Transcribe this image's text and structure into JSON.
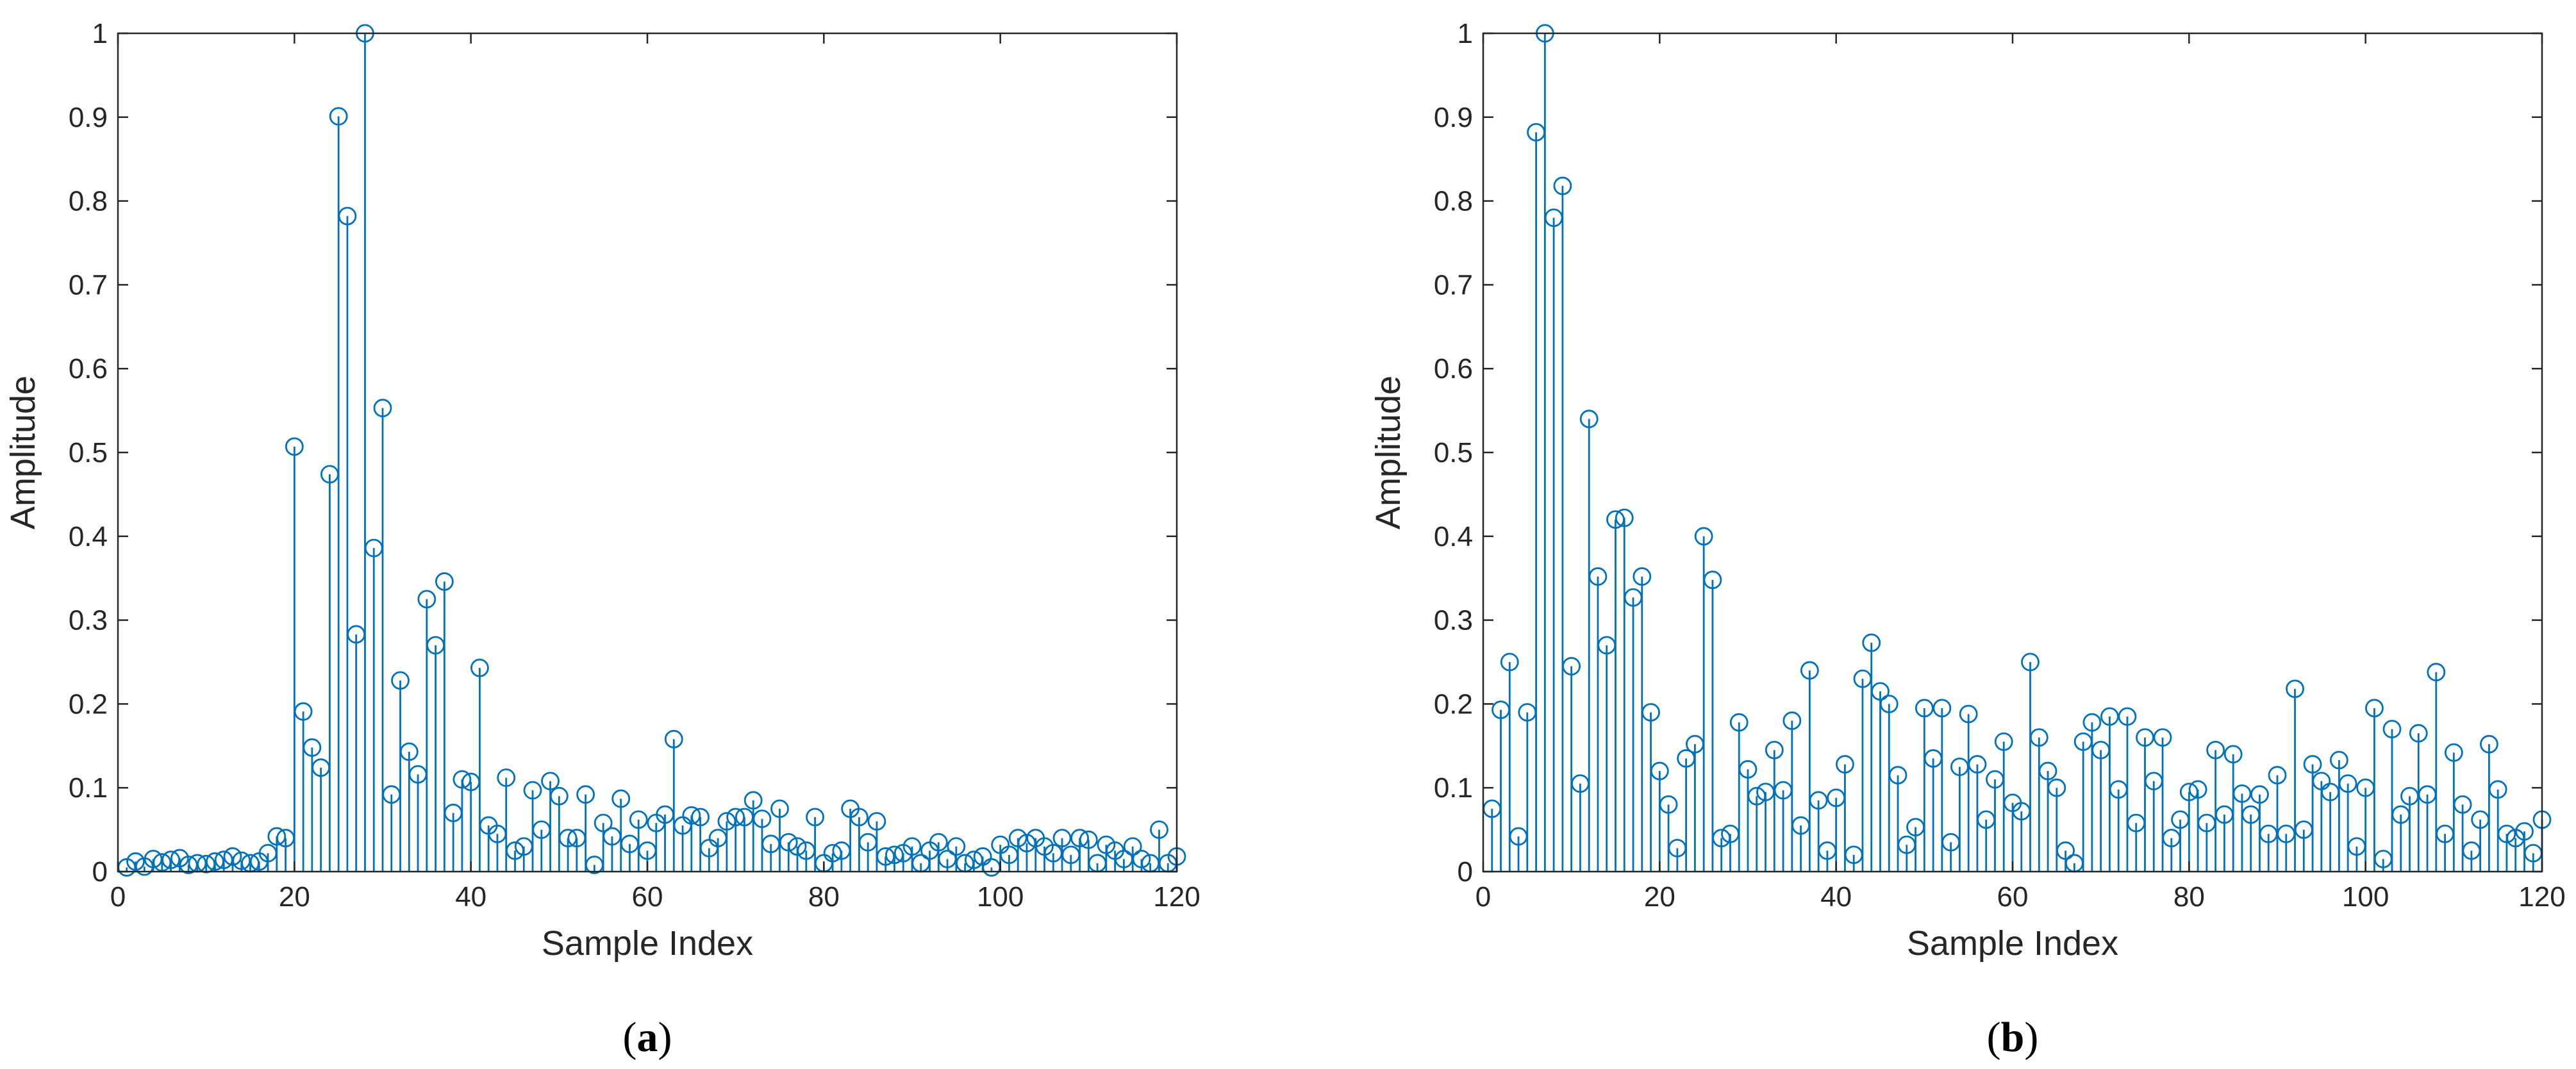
{
  "colors": {
    "series": "#0072BD",
    "axis": "#262626",
    "background": "#ffffff"
  },
  "chart_data": [
    {
      "type": "stem",
      "panel_label": "a",
      "xlabel": "Sample Index",
      "ylabel": "Amplitude",
      "xlim": [
        0,
        120
      ],
      "ylim": [
        0,
        1
      ],
      "xticks": [
        0,
        20,
        40,
        60,
        80,
        100,
        120
      ],
      "yticks": [
        0,
        0.1,
        0.2,
        0.3,
        0.4,
        0.5,
        0.6,
        0.7,
        0.8,
        0.9,
        1
      ],
      "ytick_labels": [
        "0",
        "0.1",
        "0.2",
        "0.3",
        "0.4",
        "0.5",
        "0.6",
        "0.7",
        "0.8",
        "0.9",
        "1"
      ],
      "grid": false,
      "x": [
        1,
        2,
        3,
        4,
        5,
        6,
        7,
        8,
        9,
        10,
        11,
        12,
        13,
        14,
        15,
        16,
        17,
        18,
        19,
        20,
        21,
        22,
        23,
        24,
        25,
        26,
        27,
        28,
        29,
        30,
        31,
        32,
        33,
        34,
        35,
        36,
        37,
        38,
        39,
        40,
        41,
        42,
        43,
        44,
        45,
        46,
        47,
        48,
        49,
        50,
        51,
        52,
        53,
        54,
        55,
        56,
        57,
        58,
        59,
        60,
        61,
        62,
        63,
        64,
        65,
        66,
        67,
        68,
        69,
        70,
        71,
        72,
        73,
        74,
        75,
        76,
        77,
        78,
        79,
        80,
        81,
        82,
        83,
        84,
        85,
        86,
        87,
        88,
        89,
        90,
        91,
        92,
        93,
        94,
        95,
        96,
        97,
        98,
        99,
        100,
        101,
        102,
        103,
        104,
        105,
        106,
        107,
        108,
        109,
        110,
        111,
        112,
        113,
        114,
        115,
        116,
        117,
        118,
        119,
        120
      ],
      "values": [
        0.005,
        0.012,
        0.006,
        0.015,
        0.011,
        0.014,
        0.016,
        0.008,
        0.01,
        0.009,
        0.012,
        0.014,
        0.018,
        0.013,
        0.01,
        0.012,
        0.022,
        0.042,
        0.04,
        0.507,
        0.191,
        0.148,
        0.124,
        0.474,
        0.901,
        0.782,
        0.283,
        1.0,
        0.386,
        0.553,
        0.092,
        0.228,
        0.143,
        0.116,
        0.325,
        0.27,
        0.346,
        0.07,
        0.11,
        0.107,
        0.243,
        0.055,
        0.045,
        0.112,
        0.025,
        0.03,
        0.097,
        0.05,
        0.108,
        0.09,
        0.04,
        0.04,
        0.092,
        0.008,
        0.058,
        0.042,
        0.087,
        0.033,
        0.062,
        0.025,
        0.058,
        0.068,
        0.158,
        0.055,
        0.067,
        0.065,
        0.028,
        0.04,
        0.06,
        0.065,
        0.065,
        0.085,
        0.063,
        0.033,
        0.075,
        0.035,
        0.03,
        0.025,
        0.065,
        0.01,
        0.022,
        0.025,
        0.075,
        0.065,
        0.035,
        0.06,
        0.018,
        0.02,
        0.022,
        0.03,
        0.01,
        0.025,
        0.035,
        0.015,
        0.03,
        0.01,
        0.014,
        0.018,
        0.005,
        0.032,
        0.02,
        0.04,
        0.034,
        0.04,
        0.03,
        0.022,
        0.04,
        0.02,
        0.04,
        0.038,
        0.01,
        0.032,
        0.025,
        0.015,
        0.03,
        0.015,
        0.01,
        0.05,
        0.01,
        0.018
      ]
    },
    {
      "type": "stem",
      "panel_label": "b",
      "xlabel": "Sample Index",
      "ylabel": "Amplitude",
      "xlim": [
        0,
        120
      ],
      "ylim": [
        0,
        1
      ],
      "xticks": [
        0,
        20,
        40,
        60,
        80,
        100,
        120
      ],
      "yticks": [
        0,
        0.1,
        0.2,
        0.3,
        0.4,
        0.5,
        0.6,
        0.7,
        0.8,
        0.9,
        1
      ],
      "ytick_labels": [
        "0",
        "0.1",
        "0.2",
        "0.3",
        "0.4",
        "0.5",
        "0.6",
        "0.7",
        "0.8",
        "0.9",
        "1"
      ],
      "grid": false,
      "x": [
        1,
        2,
        3,
        4,
        5,
        6,
        7,
        8,
        9,
        10,
        11,
        12,
        13,
        14,
        15,
        16,
        17,
        18,
        19,
        20,
        21,
        22,
        23,
        24,
        25,
        26,
        27,
        28,
        29,
        30,
        31,
        32,
        33,
        34,
        35,
        36,
        37,
        38,
        39,
        40,
        41,
        42,
        43,
        44,
        45,
        46,
        47,
        48,
        49,
        50,
        51,
        52,
        53,
        54,
        55,
        56,
        57,
        58,
        59,
        60,
        61,
        62,
        63,
        64,
        65,
        66,
        67,
        68,
        69,
        70,
        71,
        72,
        73,
        74,
        75,
        76,
        77,
        78,
        79,
        80,
        81,
        82,
        83,
        84,
        85,
        86,
        87,
        88,
        89,
        90,
        91,
        92,
        93,
        94,
        95,
        96,
        97,
        98,
        99,
        100,
        101,
        102,
        103,
        104,
        105,
        106,
        107,
        108,
        109,
        110,
        111,
        112,
        113,
        114,
        115,
        116,
        117,
        118,
        119,
        120
      ],
      "values": [
        0.075,
        0.193,
        0.25,
        0.042,
        0.19,
        0.882,
        1.0,
        0.78,
        0.818,
        0.245,
        0.105,
        0.54,
        0.352,
        0.27,
        0.42,
        0.422,
        0.327,
        0.352,
        0.19,
        0.12,
        0.08,
        0.028,
        0.135,
        0.152,
        0.4,
        0.348,
        0.04,
        0.045,
        0.178,
        0.122,
        0.09,
        0.095,
        0.145,
        0.097,
        0.18,
        0.055,
        0.24,
        0.085,
        0.025,
        0.088,
        0.128,
        0.02,
        0.23,
        0.273,
        0.215,
        0.2,
        0.115,
        0.032,
        0.053,
        0.195,
        0.135,
        0.195,
        0.035,
        0.125,
        0.188,
        0.128,
        0.062,
        0.11,
        0.155,
        0.082,
        0.072,
        0.25,
        0.16,
        0.12,
        0.1,
        0.025,
        0.01,
        0.155,
        0.178,
        0.145,
        0.185,
        0.098,
        0.185,
        0.058,
        0.16,
        0.108,
        0.16,
        0.04,
        0.062,
        0.095,
        0.098,
        0.058,
        0.145,
        0.068,
        0.14,
        0.093,
        0.068,
        0.092,
        0.045,
        0.115,
        0.045,
        0.218,
        0.05,
        0.128,
        0.108,
        0.095,
        0.133,
        0.105,
        0.03,
        0.1,
        0.195,
        0.015,
        0.17,
        0.068,
        0.09,
        0.165,
        0.092,
        0.238,
        0.045,
        0.142,
        0.08,
        0.025,
        0.062,
        0.152,
        0.098,
        0.045,
        0.04,
        0.048,
        0.022,
        0.062
      ]
    }
  ]
}
